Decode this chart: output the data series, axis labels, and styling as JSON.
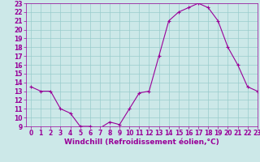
{
  "x": [
    0,
    1,
    2,
    3,
    4,
    5,
    6,
    7,
    8,
    9,
    10,
    11,
    12,
    13,
    14,
    15,
    16,
    17,
    18,
    19,
    20,
    21,
    22,
    23
  ],
  "y": [
    13.5,
    13.0,
    13.0,
    11.0,
    10.5,
    9.0,
    9.0,
    8.8,
    9.5,
    9.2,
    11.0,
    12.8,
    13.0,
    17.0,
    21.0,
    22.0,
    22.5,
    23.0,
    22.5,
    21.0,
    18.0,
    16.0,
    13.5,
    13.0
  ],
  "line_color": "#990099",
  "marker": "+",
  "marker_size": 3,
  "marker_linewidth": 0.8,
  "linewidth": 0.8,
  "xlabel": "Windchill (Refroidissement éolien,°C)",
  "xlabel_fontsize": 6.5,
  "ylim": [
    9,
    23
  ],
  "xlim": [
    -0.5,
    23
  ],
  "yticks": [
    9,
    10,
    11,
    12,
    13,
    14,
    15,
    16,
    17,
    18,
    19,
    20,
    21,
    22,
    23
  ],
  "xticks": [
    0,
    1,
    2,
    3,
    4,
    5,
    6,
    7,
    8,
    9,
    10,
    11,
    12,
    13,
    14,
    15,
    16,
    17,
    18,
    19,
    20,
    21,
    22,
    23
  ],
  "bg_color": "#cce8e8",
  "grid_color": "#99cccc",
  "tick_color": "#990099",
  "tick_label_color": "#990099",
  "tick_fontsize": 5.5
}
